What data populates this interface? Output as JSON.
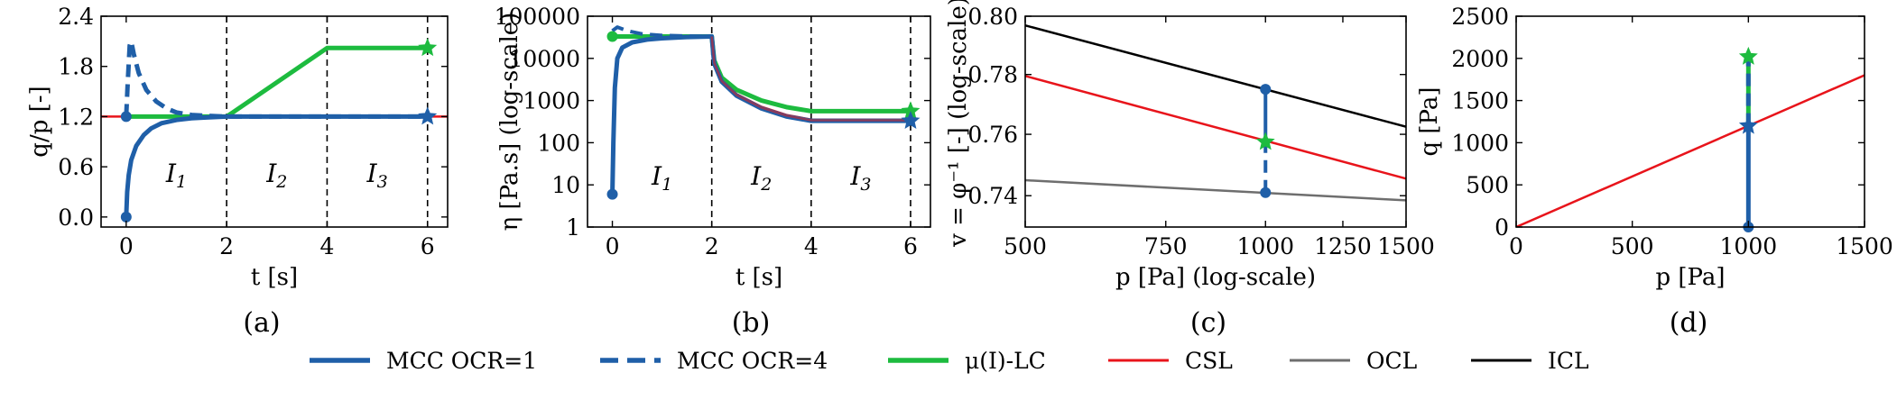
{
  "colors": {
    "mcc": "#1f5fa8",
    "mu_lc": "#1dbb3f",
    "csl": "#e8141b",
    "ocl": "#6e6e6e",
    "icl": "#000000"
  },
  "legend": [
    {
      "label": "MCC OCR=1",
      "color": "#1f5fa8",
      "style": "solid"
    },
    {
      "label": "MCC OCR=4",
      "color": "#1f5fa8",
      "style": "dashed"
    },
    {
      "label": "μ(I)-LC",
      "color": "#1dbb3f",
      "style": "solid"
    },
    {
      "label": "CSL",
      "color": "#e8141b",
      "style": "thin"
    },
    {
      "label": "OCL",
      "color": "#6e6e6e",
      "style": "thin"
    },
    {
      "label": "ICL",
      "color": "#000000",
      "style": "thin"
    }
  ],
  "chart_data": [
    {
      "id": "a",
      "caption": "(a)",
      "type": "line",
      "xlabel": "t [s]",
      "ylabel": "q/p [-]",
      "xlim": [
        -0.5,
        6.4
      ],
      "ylim": [
        -0.12,
        2.4
      ],
      "xticks": [
        0,
        2,
        4,
        6
      ],
      "xtick_labels": [
        "0",
        "2",
        "4",
        "6"
      ],
      "yticks": [
        0.0,
        0.6,
        1.2,
        1.8,
        2.4
      ],
      "ytick_labels": [
        "0.0",
        "0.6",
        "1.2",
        "1.8",
        "2.4"
      ],
      "yscale": "linear",
      "vlines": [
        2,
        4,
        6
      ],
      "regions": [
        {
          "label": "I",
          "sub": "1",
          "x": 1.0,
          "y": 0.42
        },
        {
          "label": "I",
          "sub": "2",
          "x": 3.0,
          "y": 0.42
        },
        {
          "label": "I",
          "sub": "3",
          "x": 5.0,
          "y": 0.42
        }
      ],
      "series": [
        {
          "name": "CSL",
          "color": "#e8141b",
          "width": 2.5,
          "x": [
            -0.5,
            6.4
          ],
          "y": [
            1.2,
            1.2
          ]
        },
        {
          "name": "μ(I)-LC",
          "color": "#1dbb3f",
          "width": 5,
          "x": [
            0,
            2,
            4,
            6
          ],
          "y": [
            1.2,
            1.2,
            2.02,
            2.02
          ],
          "end_marker": "star"
        },
        {
          "name": "MCC OCR=4",
          "color": "#1f5fa8",
          "width": 5,
          "dash": true,
          "x": [
            0,
            0.03,
            0.07,
            0.1,
            0.15,
            0.25,
            0.4,
            0.6,
            0.8,
            1.0,
            1.3,
            1.6,
            2.0,
            6.0
          ],
          "y": [
            1.2,
            1.6,
            2.05,
            2.1,
            1.95,
            1.72,
            1.52,
            1.38,
            1.3,
            1.25,
            1.22,
            1.21,
            1.2,
            1.2
          ],
          "start_marker": "dot",
          "end_marker": "star"
        },
        {
          "name": "MCC OCR=1",
          "color": "#1f5fa8",
          "width": 5,
          "x": [
            0,
            0.02,
            0.05,
            0.1,
            0.2,
            0.35,
            0.5,
            0.7,
            1.0,
            1.3,
            1.6,
            2.0,
            6.0
          ],
          "y": [
            0.0,
            0.3,
            0.5,
            0.68,
            0.85,
            0.98,
            1.06,
            1.12,
            1.16,
            1.18,
            1.19,
            1.2,
            1.2
          ],
          "start_marker": "dot"
        }
      ]
    },
    {
      "id": "b",
      "caption": "(b)",
      "type": "line",
      "xlabel": "t [s]",
      "ylabel": "η [Pa.s] (log-scale)",
      "xlim": [
        -0.5,
        6.4
      ],
      "ylim": [
        1,
        100000
      ],
      "xticks": [
        0,
        2,
        4,
        6
      ],
      "xtick_labels": [
        "0",
        "2",
        "4",
        "6"
      ],
      "yticks": [
        1,
        10,
        100,
        1000,
        10000,
        100000
      ],
      "ytick_labels": [
        "1",
        "10",
        "100",
        "1000",
        "10000",
        "100000"
      ],
      "yscale": "log",
      "vlines": [
        2,
        4,
        6
      ],
      "regions": [
        {
          "label": "I",
          "sub": "1",
          "x": 1.0,
          "y": 10
        },
        {
          "label": "I",
          "sub": "2",
          "x": 3.0,
          "y": 10
        },
        {
          "label": "I",
          "sub": "3",
          "x": 5.0,
          "y": 10
        }
      ],
      "series": [
        {
          "name": "μ(I)-LC",
          "color": "#1dbb3f",
          "width": 5,
          "x": [
            0,
            0.2,
            0.5,
            1.0,
            2.0,
            2.05,
            2.2,
            2.5,
            3.0,
            3.5,
            4.0,
            6.0
          ],
          "y": [
            33000,
            33000,
            33000,
            33000,
            33000,
            9000,
            3500,
            1800,
            1000,
            700,
            560,
            560
          ],
          "start_marker": "dot",
          "end_marker": "star"
        },
        {
          "name": "CSL",
          "color": "#e8141b",
          "width": 3,
          "x": [
            2.0,
            2.05,
            2.2,
            2.5,
            3.0,
            3.5,
            4.0,
            6.0
          ],
          "y": [
            33000,
            8000,
            3000,
            1400,
            700,
            450,
            350,
            350
          ]
        },
        {
          "name": "MCC OCR=4",
          "color": "#1f5fa8",
          "width": 4,
          "dash": true,
          "x": [
            0,
            0.1,
            0.3,
            0.6,
            1.0,
            2.0
          ],
          "y": [
            45000,
            55000,
            45000,
            38000,
            35000,
            33000
          ]
        },
        {
          "name": "MCC OCR=1",
          "color": "#1f5fa8",
          "width": 5,
          "x": [
            0,
            0.02,
            0.05,
            0.1,
            0.2,
            0.4,
            0.7,
            1.0,
            1.5,
            2.0,
            2.05,
            2.2,
            2.5,
            3.0,
            3.5,
            4.0,
            6.0
          ],
          "y": [
            6,
            100,
            2000,
            10000,
            18000,
            24000,
            28000,
            30000,
            32000,
            33000,
            7500,
            2800,
            1300,
            650,
            420,
            330,
            330
          ],
          "start_marker": "dot",
          "end_marker": "star"
        },
        {
          "name": "overlay",
          "color": "#8b3a5a",
          "width": 2.5,
          "x": [
            2.0,
            2.05,
            2.2,
            2.5,
            3.0,
            3.5,
            4.0,
            6.0
          ],
          "y": [
            33000,
            7800,
            2900,
            1350,
            680,
            440,
            340,
            340
          ]
        }
      ]
    },
    {
      "id": "c",
      "caption": "(c)",
      "type": "line",
      "xlabel": "p [Pa] (log-scale)",
      "ylabel": "v = φ⁻¹ [-] (log-scale)",
      "xlim": [
        500,
        1500
      ],
      "ylim": [
        0.73,
        0.8
      ],
      "xticks": [
        500,
        750,
        1000,
        1250,
        1500
      ],
      "xtick_labels": [
        "500",
        "750",
        "1000",
        "1250",
        "1500"
      ],
      "yticks": [
        0.74,
        0.76,
        0.78,
        0.8
      ],
      "ytick_labels": [
        "0.74",
        "0.76",
        "0.78",
        "0.80"
      ],
      "xscale": "log",
      "yscale": "log",
      "series": [
        {
          "name": "ICL",
          "color": "#000000",
          "width": 2.5,
          "x": [
            500,
            1500
          ],
          "y": [
            0.7968,
            0.7625
          ]
        },
        {
          "name": "CSL",
          "color": "#e8141b",
          "width": 2.5,
          "x": [
            500,
            1500
          ],
          "y": [
            0.7795,
            0.7455
          ]
        },
        {
          "name": "OCL",
          "color": "#6e6e6e",
          "width": 2.5,
          "x": [
            500,
            1500
          ],
          "y": [
            0.745,
            0.7385
          ]
        },
        {
          "name": "MCC OCR=4",
          "color": "#1f5fa8",
          "width": 4,
          "dash": true,
          "x": [
            1000,
            1000
          ],
          "y": [
            0.741,
            0.7575
          ],
          "start_marker": "dot"
        },
        {
          "name": "MCC OCR=1",
          "color": "#1f5fa8",
          "width": 4,
          "x": [
            1000,
            1000
          ],
          "y": [
            0.775,
            0.7575
          ],
          "start_marker": "dot"
        },
        {
          "name": "μ(I)-LC",
          "color": "#1dbb3f",
          "width": 0,
          "x": [
            1000
          ],
          "y": [
            0.7575
          ],
          "end_marker": "star"
        }
      ]
    },
    {
      "id": "d",
      "caption": "(d)",
      "type": "line",
      "xlabel": "p [Pa]",
      "ylabel": "q [Pa]",
      "xlim": [
        0,
        1500
      ],
      "ylim": [
        0,
        2500
      ],
      "xticks": [
        0,
        500,
        1000,
        1500
      ],
      "xtick_labels": [
        "0",
        "500",
        "1000",
        "1500"
      ],
      "yticks": [
        0,
        500,
        1000,
        1500,
        2000,
        2500
      ],
      "ytick_labels": [
        "0",
        "500",
        "1000",
        "1500",
        "2000",
        "2500"
      ],
      "yscale": "linear",
      "series": [
        {
          "name": "CSL",
          "color": "#e8141b",
          "width": 2.5,
          "x": [
            0,
            1500
          ],
          "y": [
            0,
            1800
          ]
        },
        {
          "name": "μ(I)-LC",
          "color": "#1dbb3f",
          "width": 5,
          "x": [
            1000,
            1000
          ],
          "y": [
            1200,
            2020
          ],
          "end_marker": "star"
        },
        {
          "name": "MCC OCR=4",
          "color": "#1f5fa8",
          "width": 5,
          "dash": true,
          "x": [
            1000,
            1000
          ],
          "y": [
            1200,
            2100
          ]
        },
        {
          "name": "MCC OCR=1",
          "color": "#1f5fa8",
          "width": 5,
          "x": [
            1000,
            1000
          ],
          "y": [
            0,
            1200
          ],
          "start_marker": "dot",
          "end_marker": "star"
        }
      ]
    }
  ]
}
